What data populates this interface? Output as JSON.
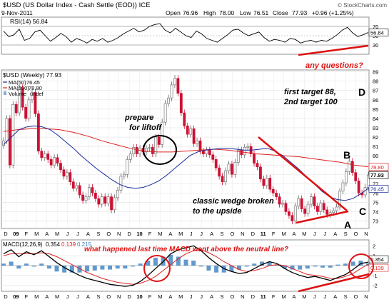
{
  "header": {
    "title": "$USD (US Dollar Index - Cash Settle (EOD)) ICE",
    "date": "9-Nov-2011",
    "open_label": "Open",
    "open": "76.96",
    "high_label": "High",
    "high": "78.00",
    "low_label": "Low",
    "low": "76.51",
    "close_label": "Close",
    "close": "77.93",
    "change": "+0.96 (+1.25%)",
    "watermark": "© StockCharts.com"
  },
  "colors": {
    "up": "#b0b0b0",
    "down": "#cc1133",
    "ma50": "#1a2a9a",
    "ma200": "#dd2222",
    "annotation": "#dd1111",
    "macd_line": "#000000",
    "signal_line": "#dd2222",
    "histogram": "#3a7fc0"
  },
  "chart_data": [
    {
      "type": "line",
      "panel": "rsi",
      "title": "RSI(14) 56.84",
      "ylim": [
        10,
        90
      ],
      "yticks": [
        "70",
        "50",
        "30"
      ],
      "current_label": "56.84",
      "values": [
        60,
        48,
        52,
        64,
        40,
        44,
        58,
        62,
        50,
        38,
        46,
        55,
        48,
        36,
        44,
        40,
        34,
        42,
        38,
        44,
        36,
        40,
        46,
        54,
        60,
        66,
        58,
        62,
        70,
        74,
        76,
        62,
        56,
        66,
        58,
        50,
        46,
        60,
        54,
        44,
        40,
        36,
        44,
        52,
        62,
        64,
        56,
        50,
        54,
        58,
        46,
        38,
        42,
        40,
        36,
        44,
        42,
        34,
        38,
        40,
        36,
        40,
        38,
        44,
        52,
        62,
        68,
        56,
        48,
        52,
        56.84
      ]
    },
    {
      "type": "candlestick",
      "panel": "price",
      "title": "$USD (Weekly) 77.93",
      "legend": [
        {
          "name": "MA(50)",
          "value": "76.45"
        },
        {
          "name": "MA(200)",
          "value": "78.80"
        },
        {
          "name": "Volume",
          "value": "undef"
        }
      ],
      "yticks": [
        "89",
        "88",
        "87",
        "86",
        "85",
        "84",
        "83",
        "82",
        "81",
        "80",
        "79",
        "78",
        "77",
        "76",
        "75",
        "74",
        "73"
      ],
      "ylim": [
        72.2,
        89.2
      ],
      "price_labels": [
        "78.80",
        "77.93",
        "76.45"
      ],
      "x_labels": [
        "D",
        "09",
        "F",
        "M",
        "A",
        "M",
        "J",
        "J",
        "A",
        "S",
        "O",
        "N",
        "D",
        "10",
        "F",
        "M",
        "A",
        "M",
        "J",
        "J",
        "A",
        "S",
        "O",
        "N",
        "D",
        "11",
        "F",
        "M",
        "A",
        "M",
        "J",
        "J",
        "A",
        "S",
        "O",
        "N"
      ],
      "closes": [
        81.6,
        84.0,
        79.0,
        85.5,
        84.6,
        87.3,
        85.2,
        84.0,
        86.0,
        86.8,
        84.5,
        80.5,
        79.8,
        80.2,
        79.6,
        79.0,
        79.8,
        79.2,
        78.5,
        77.8,
        78.2,
        77.2,
        76.5,
        76.8,
        75.8,
        75.2,
        75.6,
        76.6,
        76.0,
        75.4,
        74.8,
        75.6,
        74.9,
        75.6,
        74.2,
        75.5,
        76.3,
        77.8,
        78.0,
        79.6,
        80.2,
        80.9,
        80.2,
        80.8,
        80.4,
        80.8,
        80.9,
        80.2,
        82.0,
        81.2,
        83.6,
        85.6,
        86.2,
        87.6,
        88.3,
        86.7,
        84.6,
        83.2,
        82.3,
        82.9,
        81.3,
        81.6,
        80.5,
        80.2,
        80.6,
        80.1,
        79.6,
        78.7,
        77.8,
        77.2,
        78.4,
        79.1,
        78.0,
        79.3,
        80.6,
        80.1,
        80.9,
        81.0,
        80.2,
        79.2,
        78.8,
        77.5,
        76.8,
        77.6,
        76.4,
        76.0,
        75.6,
        74.8,
        74.9,
        74.0,
        73.6,
        73.0,
        74.6,
        75.4,
        74.3,
        73.8,
        74.8,
        75.6,
        74.6,
        74.0,
        74.9,
        74.2,
        73.7,
        73.9,
        74.1,
        74.5,
        76.2,
        77.1,
        78.3,
        79.4,
        78.2,
        77.3,
        76.0,
        75.8,
        76.6,
        77.93
      ],
      "ma50": [
        81.2,
        82.0,
        82.8,
        83.1,
        83.2,
        83.1,
        82.8,
        82.2,
        81.5,
        80.8,
        80.0,
        79.3,
        78.6,
        78.0,
        77.4,
        76.9,
        76.6,
        76.5,
        76.6,
        76.9,
        77.3,
        77.9,
        78.6,
        79.3,
        80.0,
        80.4,
        80.6,
        80.7,
        80.8,
        80.8,
        80.7,
        80.6,
        80.6,
        80.7,
        80.8,
        80.5,
        80.0,
        79.3,
        78.6,
        77.8,
        77.0,
        76.2,
        75.6,
        75.3,
        75.2,
        75.4,
        75.9,
        76.5
      ],
      "ma200": [
        82.6,
        82.8,
        82.9,
        82.9,
        82.8,
        82.5,
        82.1,
        81.6,
        81.2,
        80.8,
        80.5,
        80.4,
        80.4,
        80.5,
        80.6,
        80.7,
        80.6,
        80.4,
        80.2,
        80.1,
        80.0,
        79.9,
        79.7,
        79.5,
        79.3,
        79.0,
        78.8
      ]
    },
    {
      "type": "line",
      "panel": "macd",
      "title": "MACD(12,26,9) 0.354, 0.139, 0.215",
      "macd_value": "0.354",
      "signal_value": "0.139",
      "histogram_value": "0.215",
      "yticks": [
        "2",
        "1",
        "0",
        "-1",
        "-2"
      ],
      "ylim": [
        -2.6,
        2.6
      ],
      "current_labels": [
        "0.354",
        "0.139"
      ],
      "macd": [
        1.2,
        1.6,
        0.9,
        1.4,
        1.1,
        1.5,
        0.9,
        0.3,
        -0.2,
        -0.6,
        -1.0,
        -1.3,
        -1.5,
        -1.7,
        -1.9,
        -2.0,
        -2.1,
        -2.0,
        -1.6,
        -1.0,
        -0.3,
        0.4,
        1.2,
        1.6,
        1.8,
        2.0,
        1.5,
        0.8,
        0.2,
        -0.3,
        -0.6,
        -0.8,
        -0.7,
        -0.3,
        0.1,
        0.4,
        0.2,
        -0.3,
        -0.7,
        -1.0,
        -1.2,
        -1.1,
        -1.3,
        -1.5,
        -1.2,
        -0.9,
        -0.4,
        0.2,
        0.354
      ],
      "signal": [
        1.0,
        1.2,
        1.2,
        1.2,
        1.2,
        1.3,
        1.2,
        0.9,
        0.5,
        0.1,
        -0.3,
        -0.7,
        -1.0,
        -1.3,
        -1.5,
        -1.7,
        -1.8,
        -1.9,
        -1.8,
        -1.5,
        -1.1,
        -0.5,
        0.1,
        0.7,
        1.2,
        1.5,
        1.6,
        1.3,
        0.9,
        0.4,
        0.0,
        -0.4,
        -0.6,
        -0.5,
        -0.3,
        0.0,
        0.1,
        0.0,
        -0.3,
        -0.6,
        -0.9,
        -1.0,
        -1.1,
        -1.3,
        -1.3,
        -1.1,
        -0.8,
        -0.3,
        0.139
      ],
      "x_labels": [
        "D",
        "09",
        "F",
        "M",
        "A",
        "M",
        "J",
        "J",
        "A",
        "S",
        "O",
        "N",
        "D",
        "10",
        "F",
        "M",
        "A",
        "M",
        "J",
        "J",
        "A",
        "S",
        "O",
        "N",
        "D",
        "11",
        "F",
        "M",
        "A",
        "M",
        "J",
        "J",
        "A",
        "S",
        "O",
        "N"
      ]
    }
  ],
  "annotations": {
    "questions": "any questions?",
    "target1": "first target 88,",
    "target2": "2nd target 100",
    "prepare1": "prepare",
    "prepare2": "for liftoff",
    "wedge1": "classic wedge broken",
    "wedge2": "to the upside",
    "macd_note": "what happened last time MACD went above the neutral line?",
    "label_a": "A",
    "label_b": "B",
    "label_c": "C",
    "label_d": "D"
  }
}
